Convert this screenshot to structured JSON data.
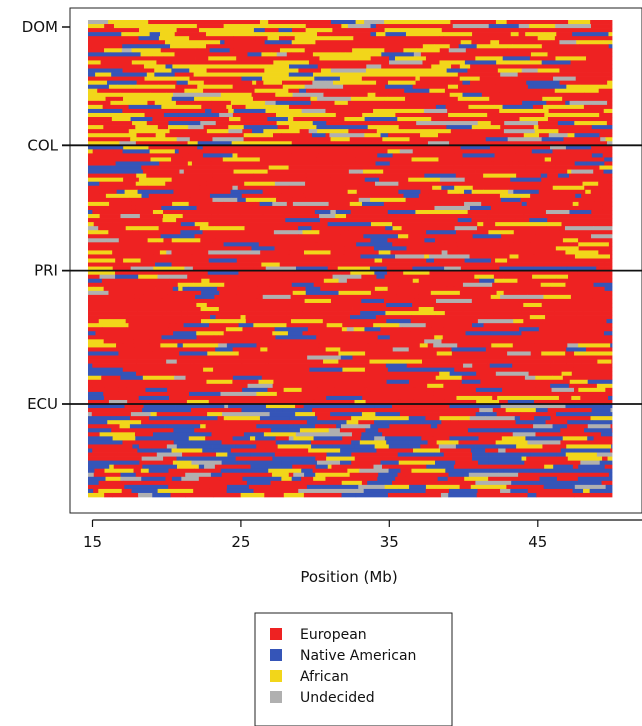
{
  "chart_data": {
    "type": "heatmap",
    "title": "",
    "xlabel": "Position (Mb)",
    "ylabel": "",
    "xlim": [
      14.7,
      50.0
    ],
    "x_ticks": [
      "15",
      "25",
      "35",
      "45"
    ],
    "row_groups": [
      {
        "name": "DOM",
        "rows": 31
      },
      {
        "name": "COL",
        "rows": 31
      },
      {
        "name": "PRI",
        "rows": 33
      },
      {
        "name": "ECU",
        "rows": 23
      }
    ],
    "ancestry_categories": [
      {
        "name": "European",
        "color": "#ee2222"
      },
      {
        "name": "Native American",
        "color": "#3555b8"
      },
      {
        "name": "African",
        "color": "#f2d61a"
      },
      {
        "name": "Undecided",
        "color": "#b0b0b0"
      }
    ],
    "legend": {
      "position": "bottom-center",
      "entries": [
        "European",
        "Native American",
        "African",
        "Undecided"
      ]
    },
    "grid": false
  }
}
